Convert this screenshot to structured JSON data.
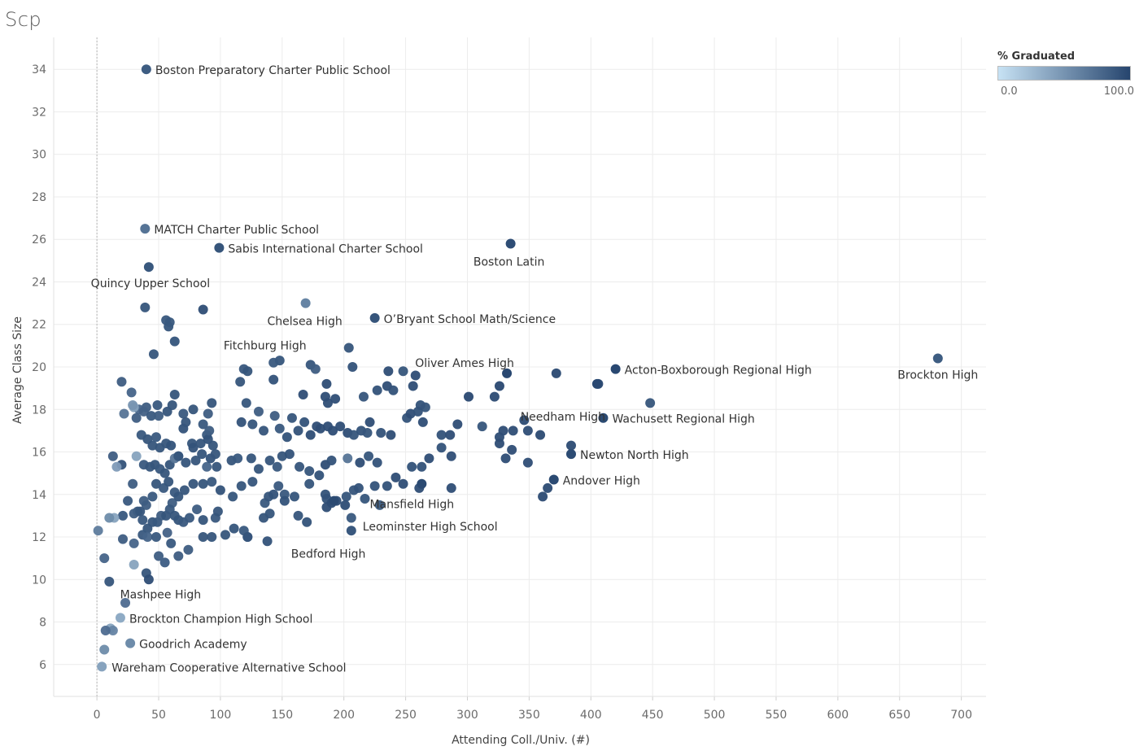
{
  "title": "Scp",
  "legend": {
    "title": "% Graduated",
    "min_label": "0.0",
    "max_label": "100.0",
    "color_low": "#c7e2f4",
    "color_high": "#26456e"
  },
  "chart_data": {
    "type": "scatter",
    "xlabel": "Attending Coll./Univ. (#)",
    "ylabel": "Average Class Size",
    "xlim": [
      -35,
      720
    ],
    "ylim": [
      4.5,
      35.5
    ],
    "xticks": [
      0,
      50,
      100,
      150,
      200,
      250,
      300,
      350,
      400,
      450,
      500,
      550,
      600,
      650,
      700
    ],
    "yticks": [
      6,
      8,
      10,
      12,
      14,
      16,
      18,
      20,
      22,
      24,
      26,
      28,
      30,
      32,
      34
    ],
    "grid": true,
    "zero_line": true,
    "legend_position": "top-right",
    "labeled_points": [
      {
        "x": 40,
        "y": 34.0,
        "label": "Boston Preparatory Charter Public School",
        "grad": 85
      },
      {
        "x": 39,
        "y": 26.5,
        "label": "MATCH Charter Public School",
        "grad": 70
      },
      {
        "x": 99,
        "y": 25.6,
        "label": "Sabis International Charter School",
        "grad": 90
      },
      {
        "x": 335,
        "y": 25.8,
        "label": "Boston Latin",
        "grad": 95
      },
      {
        "x": 42,
        "y": 24.7,
        "label": "Quincy Upper School",
        "grad": 88
      },
      {
        "x": 169,
        "y": 23.0,
        "label": "Chelsea High",
        "grad": 60
      },
      {
        "x": 225,
        "y": 22.3,
        "label": "O’Bryant School Math/Science",
        "grad": 90
      },
      {
        "x": 63,
        "y": 21.2,
        "label": "Fitchburg High",
        "grad": 85
      },
      {
        "x": 681,
        "y": 20.4,
        "label": "Brockton High",
        "grad": 85
      },
      {
        "x": 332,
        "y": 19.7,
        "label": "Oliver Ames High",
        "grad": 98
      },
      {
        "x": 420,
        "y": 19.9,
        "label": "Acton-Boxborough Regional High",
        "grad": 98
      },
      {
        "x": 410,
        "y": 17.6,
        "label": "Wachusett Regional High",
        "grad": 97
      },
      {
        "x": 405,
        "y": 19.2,
        "label": "Needham High",
        "grad": 98
      },
      {
        "x": 384,
        "y": 15.9,
        "label": "Newton North High",
        "grad": 96
      },
      {
        "x": 370,
        "y": 14.7,
        "label": "Andover High",
        "grad": 97
      },
      {
        "x": 263,
        "y": 14.5,
        "label": "Mansfield High",
        "grad": 97
      },
      {
        "x": 206,
        "y": 12.3,
        "label": "Leominster High School",
        "grad": 88
      },
      {
        "x": 192,
        "y": 13.7,
        "label": "Bedford High",
        "grad": 97
      },
      {
        "x": 55,
        "y": 10.8,
        "label": "Mashpee High",
        "grad": 80
      },
      {
        "x": 19,
        "y": 8.2,
        "label": "Brockton Champion High School",
        "grad": 35
      },
      {
        "x": 27,
        "y": 7.0,
        "label": "Goodrich Academy",
        "grad": 55
      },
      {
        "x": 4,
        "y": 5.9,
        "label": "Wareham Cooperative Alternative School",
        "grad": 40
      }
    ],
    "points": [
      [
        86,
        22.7,
        95
      ],
      [
        39,
        22.8,
        90
      ],
      [
        56,
        22.2,
        88
      ],
      [
        58,
        21.9,
        90
      ],
      [
        59,
        22.1,
        88
      ],
      [
        46,
        20.6,
        90
      ],
      [
        148,
        20.3,
        90
      ],
      [
        143,
        20.2,
        88
      ],
      [
        173,
        20.1,
        90
      ],
      [
        177,
        19.9,
        85
      ],
      [
        204,
        20.9,
        90
      ],
      [
        207,
        20.0,
        92
      ],
      [
        119,
        19.9,
        88
      ],
      [
        122,
        19.8,
        90
      ],
      [
        116,
        19.3,
        90
      ],
      [
        143,
        19.4,
        92
      ],
      [
        186,
        19.2,
        95
      ],
      [
        20,
        19.3,
        85
      ],
      [
        28,
        18.8,
        80
      ],
      [
        40,
        18.1,
        85
      ],
      [
        49,
        18.2,
        88
      ],
      [
        34,
        18.0,
        80
      ],
      [
        30,
        18.1,
        40
      ],
      [
        29,
        18.2,
        50
      ],
      [
        22,
        17.8,
        70
      ],
      [
        38,
        17.9,
        82
      ],
      [
        44,
        17.7,
        88
      ],
      [
        50,
        17.7,
        85
      ],
      [
        57,
        17.9,
        90
      ],
      [
        61,
        18.2,
        90
      ],
      [
        63,
        18.7,
        90
      ],
      [
        70,
        17.8,
        88
      ],
      [
        78,
        18.0,
        90
      ],
      [
        90,
        17.8,
        85
      ],
      [
        93,
        18.3,
        90
      ],
      [
        121,
        18.3,
        90
      ],
      [
        131,
        17.9,
        85
      ],
      [
        144,
        17.7,
        85
      ],
      [
        167,
        18.7,
        95
      ],
      [
        185,
        18.6,
        95
      ],
      [
        193,
        18.5,
        95
      ],
      [
        187,
        18.3,
        95
      ],
      [
        216,
        18.6,
        90
      ],
      [
        227,
        18.9,
        92
      ],
      [
        235,
        19.1,
        95
      ],
      [
        236,
        19.8,
        95
      ],
      [
        240,
        18.9,
        92
      ],
      [
        258,
        19.6,
        95
      ],
      [
        256,
        19.1,
        95
      ],
      [
        248,
        19.8,
        90
      ],
      [
        262,
        18.2,
        92
      ],
      [
        266,
        18.1,
        90
      ],
      [
        301,
        18.6,
        98
      ],
      [
        322,
        18.6,
        96
      ],
      [
        326,
        19.1,
        98
      ],
      [
        406,
        19.2,
        98
      ],
      [
        372,
        19.7,
        98
      ],
      [
        448,
        18.3,
        90
      ],
      [
        32,
        17.6,
        85
      ],
      [
        36,
        16.8,
        88
      ],
      [
        41,
        16.6,
        90
      ],
      [
        45,
        16.3,
        90
      ],
      [
        48,
        16.7,
        88
      ],
      [
        51,
        16.2,
        90
      ],
      [
        56,
        16.4,
        90
      ],
      [
        60,
        16.3,
        92
      ],
      [
        66,
        15.8,
        90
      ],
      [
        70,
        17.1,
        92
      ],
      [
        72,
        17.4,
        90
      ],
      [
        77,
        16.4,
        90
      ],
      [
        78,
        16.2,
        92
      ],
      [
        84,
        16.4,
        90
      ],
      [
        86,
        17.3,
        88
      ],
      [
        89,
        16.8,
        88
      ],
      [
        90,
        16.6,
        92
      ],
      [
        94,
        16.3,
        90
      ],
      [
        91,
        17.0,
        85
      ],
      [
        117,
        17.4,
        92
      ],
      [
        126,
        17.3,
        90
      ],
      [
        135,
        17.0,
        90
      ],
      [
        148,
        17.1,
        88
      ],
      [
        154,
        16.7,
        92
      ],
      [
        158,
        17.6,
        90
      ],
      [
        163,
        17.0,
        92
      ],
      [
        168,
        17.4,
        92
      ],
      [
        173,
        16.8,
        95
      ],
      [
        178,
        17.2,
        95
      ],
      [
        181,
        17.1,
        95
      ],
      [
        187,
        17.2,
        95
      ],
      [
        191,
        17.0,
        95
      ],
      [
        197,
        17.2,
        95
      ],
      [
        203,
        16.9,
        95
      ],
      [
        208,
        16.8,
        90
      ],
      [
        214,
        17.0,
        92
      ],
      [
        219,
        16.9,
        90
      ],
      [
        221,
        17.4,
        95
      ],
      [
        230,
        16.9,
        92
      ],
      [
        238,
        16.8,
        95
      ],
      [
        251,
        17.6,
        92
      ],
      [
        254,
        17.8,
        95
      ],
      [
        260,
        17.9,
        92
      ],
      [
        264,
        17.4,
        95
      ],
      [
        279,
        16.8,
        92
      ],
      [
        286,
        16.8,
        95
      ],
      [
        292,
        17.3,
        95
      ],
      [
        312,
        17.2,
        90
      ],
      [
        326,
        16.7,
        95
      ],
      [
        329,
        17.0,
        95
      ],
      [
        337,
        17.0,
        95
      ],
      [
        346,
        17.5,
        96
      ],
      [
        349,
        17.0,
        95
      ],
      [
        359,
        16.8,
        97
      ],
      [
        20,
        15.4,
        92
      ],
      [
        13,
        15.8,
        85
      ],
      [
        16,
        15.3,
        45
      ],
      [
        32,
        15.8,
        40
      ],
      [
        38,
        15.4,
        88
      ],
      [
        43,
        15.3,
        90
      ],
      [
        47,
        15.4,
        90
      ],
      [
        51,
        15.2,
        88
      ],
      [
        55,
        15.0,
        90
      ],
      [
        59,
        15.4,
        90
      ],
      [
        63,
        15.7,
        70
      ],
      [
        66,
        15.8,
        90
      ],
      [
        72,
        15.5,
        90
      ],
      [
        80,
        15.6,
        90
      ],
      [
        85,
        15.9,
        90
      ],
      [
        89,
        15.3,
        80
      ],
      [
        92,
        15.7,
        92
      ],
      [
        96,
        15.9,
        90
      ],
      [
        97,
        15.3,
        90
      ],
      [
        109,
        15.6,
        90
      ],
      [
        114,
        15.7,
        88
      ],
      [
        125,
        15.7,
        90
      ],
      [
        131,
        15.2,
        90
      ],
      [
        140,
        15.6,
        90
      ],
      [
        146,
        15.3,
        88
      ],
      [
        150,
        15.8,
        90
      ],
      [
        156,
        15.9,
        92
      ],
      [
        164,
        15.3,
        90
      ],
      [
        172,
        15.1,
        90
      ],
      [
        180,
        14.9,
        92
      ],
      [
        185,
        15.4,
        95
      ],
      [
        190,
        15.6,
        92
      ],
      [
        203,
        15.7,
        70
      ],
      [
        213,
        15.5,
        95
      ],
      [
        220,
        15.8,
        90
      ],
      [
        227,
        15.5,
        92
      ],
      [
        255,
        15.3,
        92
      ],
      [
        263,
        15.3,
        92
      ],
      [
        269,
        15.7,
        95
      ],
      [
        279,
        16.2,
        92
      ],
      [
        287,
        15.8,
        95
      ],
      [
        326,
        16.4,
        95
      ],
      [
        331,
        15.7,
        95
      ],
      [
        336,
        16.1,
        95
      ],
      [
        349,
        15.5,
        95
      ],
      [
        384,
        16.3,
        96
      ],
      [
        25,
        13.7,
        88
      ],
      [
        29,
        14.5,
        85
      ],
      [
        33,
        13.2,
        90
      ],
      [
        38,
        13.7,
        85
      ],
      [
        40,
        13.5,
        85
      ],
      [
        45,
        13.9,
        88
      ],
      [
        48,
        14.5,
        90
      ],
      [
        54,
        14.3,
        88
      ],
      [
        58,
        14.6,
        90
      ],
      [
        61,
        13.6,
        85
      ],
      [
        63,
        14.1,
        88
      ],
      [
        66,
        13.9,
        90
      ],
      [
        71,
        14.2,
        90
      ],
      [
        78,
        14.5,
        90
      ],
      [
        86,
        14.5,
        90
      ],
      [
        93,
        14.6,
        88
      ],
      [
        100,
        14.2,
        92
      ],
      [
        110,
        13.9,
        90
      ],
      [
        117,
        14.4,
        90
      ],
      [
        126,
        14.6,
        90
      ],
      [
        136,
        13.6,
        88
      ],
      [
        139,
        13.9,
        90
      ],
      [
        143,
        14.0,
        92
      ],
      [
        147,
        14.4,
        88
      ],
      [
        152,
        14.0,
        88
      ],
      [
        160,
        13.9,
        90
      ],
      [
        172,
        14.5,
        90
      ],
      [
        185,
        14.0,
        92
      ],
      [
        186,
        13.8,
        92
      ],
      [
        190,
        13.6,
        95
      ],
      [
        194,
        13.7,
        95
      ],
      [
        202,
        13.9,
        90
      ],
      [
        208,
        14.2,
        90
      ],
      [
        212,
        14.3,
        92
      ],
      [
        217,
        13.8,
        90
      ],
      [
        225,
        14.4,
        92
      ],
      [
        235,
        14.4,
        92
      ],
      [
        242,
        14.8,
        95
      ],
      [
        248,
        14.5,
        95
      ],
      [
        261,
        14.3,
        95
      ],
      [
        287,
        14.3,
        95
      ],
      [
        361,
        13.9,
        96
      ],
      [
        365,
        14.3,
        96
      ],
      [
        21,
        13.0,
        88
      ],
      [
        30,
        13.1,
        85
      ],
      [
        35,
        13.2,
        90
      ],
      [
        37,
        12.8,
        88
      ],
      [
        41,
        12.4,
        90
      ],
      [
        45,
        12.7,
        90
      ],
      [
        49,
        12.7,
        88
      ],
      [
        52,
        13.0,
        85
      ],
      [
        56,
        13.0,
        90
      ],
      [
        59,
        13.3,
        88
      ],
      [
        63,
        13.0,
        90
      ],
      [
        66,
        12.8,
        90
      ],
      [
        70,
        12.7,
        88
      ],
      [
        75,
        12.9,
        88
      ],
      [
        81,
        13.3,
        85
      ],
      [
        86,
        12.8,
        90
      ],
      [
        96,
        12.9,
        88
      ],
      [
        98,
        13.2,
        90
      ],
      [
        111,
        12.4,
        90
      ],
      [
        122,
        12.0,
        92
      ],
      [
        135,
        12.9,
        90
      ],
      [
        140,
        13.1,
        90
      ],
      [
        152,
        13.7,
        92
      ],
      [
        163,
        13.0,
        90
      ],
      [
        170,
        12.7,
        92
      ],
      [
        186,
        13.4,
        95
      ],
      [
        201,
        13.5,
        95
      ],
      [
        206,
        12.9,
        88
      ],
      [
        229,
        13.5,
        88
      ],
      [
        14,
        12.9,
        40
      ],
      [
        10,
        12.9,
        55
      ],
      [
        1,
        12.3,
        65
      ],
      [
        21,
        11.9,
        85
      ],
      [
        30,
        11.7,
        80
      ],
      [
        37,
        12.1,
        88
      ],
      [
        41,
        12.0,
        80
      ],
      [
        48,
        12.0,
        88
      ],
      [
        57,
        12.2,
        82
      ],
      [
        60,
        11.7,
        88
      ],
      [
        66,
        11.1,
        85
      ],
      [
        74,
        11.4,
        85
      ],
      [
        86,
        12.0,
        90
      ],
      [
        93,
        12.0,
        90
      ],
      [
        104,
        12.1,
        90
      ],
      [
        119,
        12.3,
        88
      ],
      [
        122,
        12.0,
        90
      ],
      [
        138,
        11.8,
        92
      ],
      [
        6,
        11.0,
        80
      ],
      [
        30,
        10.7,
        40
      ],
      [
        40,
        10.3,
        90
      ],
      [
        42,
        10.0,
        95
      ],
      [
        50,
        11.1,
        85
      ],
      [
        10,
        9.9,
        90
      ],
      [
        23,
        8.9,
        75
      ],
      [
        11,
        7.7,
        40
      ],
      [
        13,
        7.6,
        60
      ],
      [
        7,
        7.6,
        75
      ],
      [
        6,
        6.7,
        55
      ]
    ]
  }
}
